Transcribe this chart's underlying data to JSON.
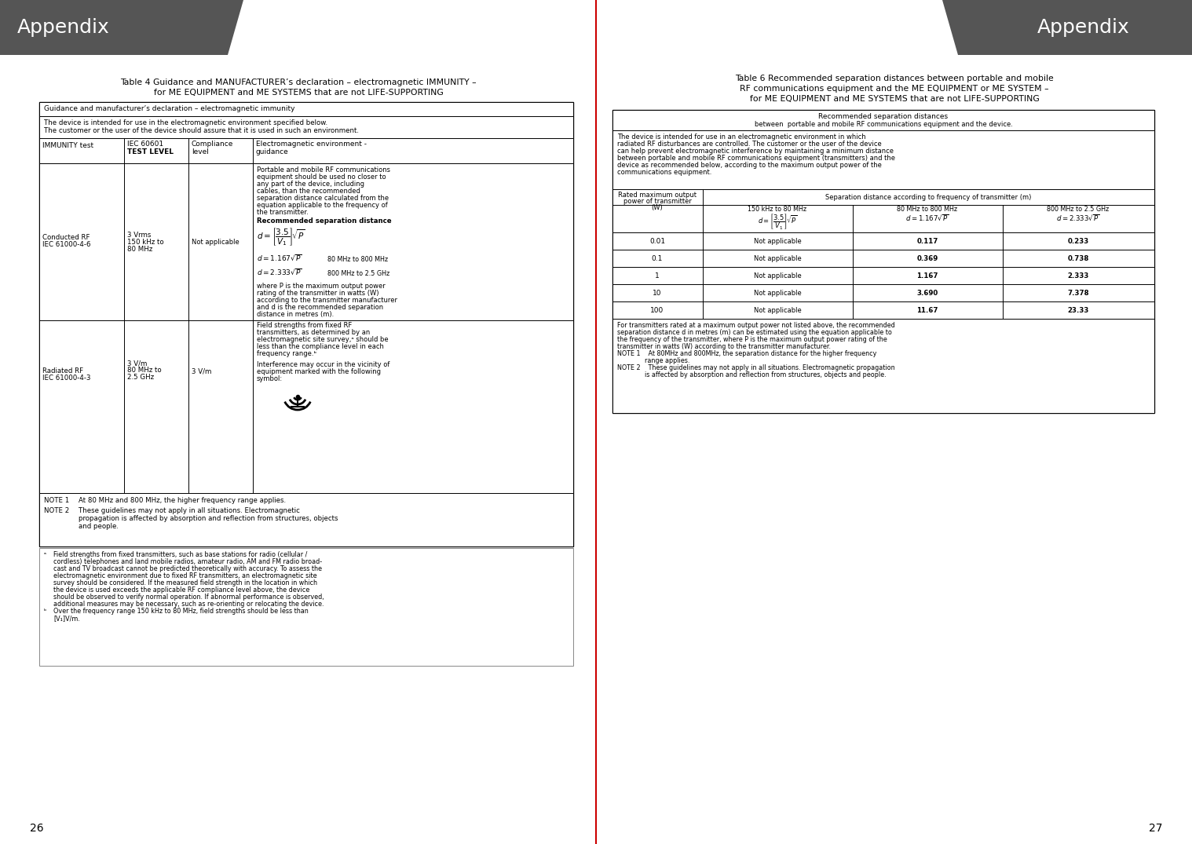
{
  "bg_color": "#ffffff",
  "header_bg": "#555555",
  "header_text_color": "#ffffff",
  "header_text": "Appendix",
  "page_number_left": "26",
  "page_number_right": "27",
  "left_title_line1": "Table 4 Guidance and MANUFACTURER’s declaration – electromagnetic IMMUNITY –",
  "left_title_line2": "for ME EQUIPMENT and ME SYSTEMS that are not LIFE-SUPPORTING",
  "right_title_line1": "Table 6 Recommended separation distances between portable and mobile",
  "right_title_line2": "RF communications equipment and the ME EQUIPMENT or ME SYSTEM –",
  "right_title_line3": "for ME EQUIPMENT and ME SYSTEMS that are not LIFE-SUPPORTING",
  "table4_header": "Guidance and manufacturer’s declaration – electromagnetic immunity",
  "table4_desc1": "The device is intended for use in the electromagnetic environment specified below.",
  "table4_desc2": "The customer or the user of the device should assure that it is used in such an environment.",
  "col1_header": "IMMUNITY test",
  "col2_header_line1": "IEC 60601",
  "col2_header_line2": "TEST LEVEL",
  "col3_header_line1": "Compliance",
  "col3_header_line2": "level",
  "col4_header_line1": "Electromagnetic environment -",
  "col4_header_line2": "guidance",
  "right_table_header1": "Recommended separation distances",
  "right_table_header2": "between  portable and mobile RF communications equipment and the device.",
  "divider_color": "#cc0000",
  "table_border_color": "#000000",
  "footnote_border_color": "#999999"
}
